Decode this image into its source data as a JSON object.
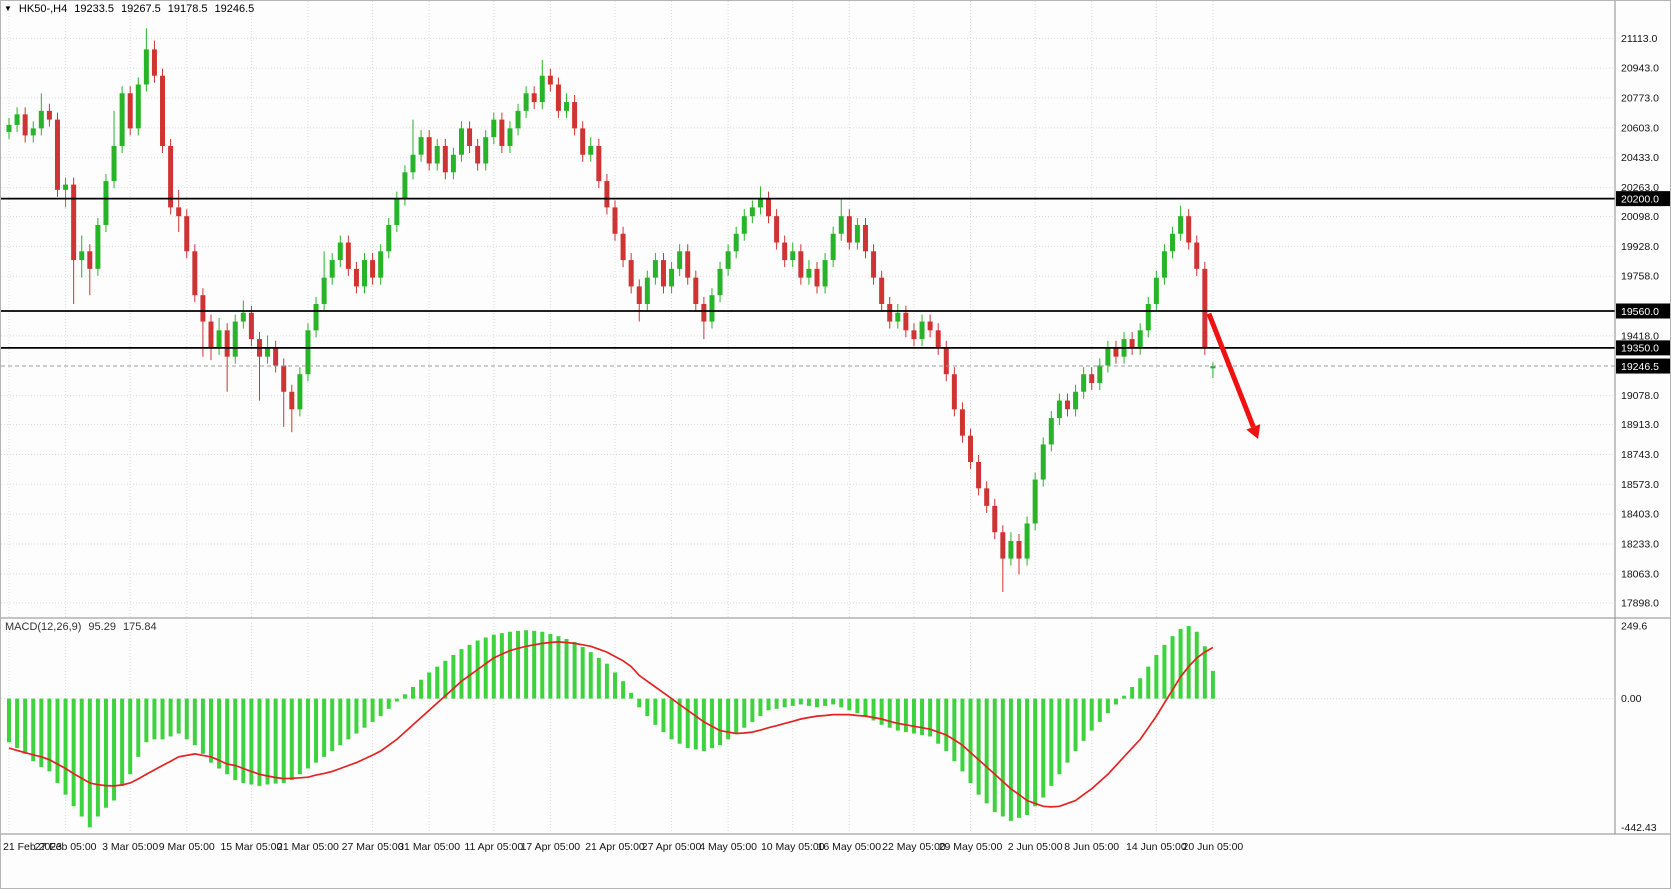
{
  "info_bar": {
    "symbol_period": "HK50-,H4",
    "open": "19233.5",
    "high": "19267.5",
    "low": "19178.5",
    "close": "19246.5"
  },
  "colors": {
    "up": "#28b428",
    "down": "#cf3434",
    "macd_hist": "#3fd23f",
    "macd_signal": "#e32222",
    "level": "#000000",
    "grid": "#dcdcdc",
    "bg": "#fdfdfd",
    "price_box_bg": "#000000",
    "price_box_text": "#ffffff",
    "arrow": "#f01212"
  },
  "price_axis": {
    "labels": [
      "21113.0",
      "20943.0",
      "20773.0",
      "20603.0",
      "20433.0",
      "20263.0",
      "20098.0",
      "19928.0",
      "19758.0",
      "19418.0",
      "19078.0",
      "18913.0",
      "18743.0",
      "18573.0",
      "18403.0",
      "18233.0",
      "18063.0",
      "17898.0"
    ],
    "levels": [
      {
        "price": 20200.0,
        "label": "20200.0"
      },
      {
        "price": 19560.0,
        "label": "19560.0"
      },
      {
        "price": 19350.0,
        "label": "19350.0"
      }
    ],
    "current": {
      "price": 19246.5,
      "label": "19246.5"
    }
  },
  "time_axis": {
    "labels": [
      "21 Feb 2023",
      "27 Feb 05:00",
      "3 Mar 05:00",
      "9 Mar 05:00",
      "15 Mar 05:00",
      "21 Mar 05:00",
      "27 Mar 05:00",
      "31 Mar 05:00",
      "11 Apr 05:00",
      "17 Apr 05:00",
      "21 Apr 05:00",
      "27 Apr 05:00",
      "4 May 05:00",
      "10 May 05:00",
      "16 May 05:00",
      "22 May 05:00",
      "29 May 05:00",
      "2 Jun 05:00",
      "8 Jun 05:00",
      "14 Jun 05:00",
      "20 Jun 05:00"
    ]
  },
  "macd": {
    "label": "MACD(12,26,9)",
    "value_main": "95.29",
    "value_signal": "175.84",
    "scale_labels": [
      {
        "value": 249.6,
        "label": "249.6"
      },
      {
        "value": 0,
        "label": "0.00"
      },
      {
        "value": -442.43,
        "label": "-442.43"
      }
    ]
  },
  "chart_data": {
    "type": "candlestick",
    "title": "HK50-,H4",
    "indicator": "MACD(12,26,9)",
    "price_range": [
      17840,
      21280
    ],
    "macd_range": [
      -455,
      260
    ],
    "support_resistance_levels": [
      20200.0,
      19560.0,
      19350.0
    ],
    "current_price": 19246.5,
    "last_bar_ohlc": {
      "open": 19233.5,
      "high": 19267.5,
      "low": 19178.5,
      "close": 19246.5
    },
    "annotation_arrow": {
      "from_index": 148.5,
      "from_price": 19545,
      "to_index": 154,
      "to_price": 18900,
      "note": "red down arrow"
    },
    "candles": [
      [
        20580,
        20660,
        20540,
        20620
      ],
      [
        20620,
        20720,
        20580,
        20680
      ],
      [
        20680,
        20720,
        20520,
        20560
      ],
      [
        20560,
        20640,
        20520,
        20600
      ],
      [
        20600,
        20800,
        20560,
        20700
      ],
      [
        20700,
        20740,
        20610,
        20650
      ],
      [
        20650,
        20690,
        20210,
        20250
      ],
      [
        20250,
        20320,
        20150,
        20280
      ],
      [
        20280,
        20320,
        19600,
        19850
      ],
      [
        19850,
        19990,
        19750,
        19900
      ],
      [
        19900,
        19940,
        19650,
        19800
      ],
      [
        19800,
        20090,
        19760,
        20050
      ],
      [
        20050,
        20340,
        20010,
        20300
      ],
      [
        20300,
        20700,
        20260,
        20500
      ],
      [
        20500,
        20840,
        20460,
        20800
      ],
      [
        20800,
        20840,
        20560,
        20600
      ],
      [
        20600,
        20890,
        20560,
        20850
      ],
      [
        20850,
        21170,
        20810,
        21050
      ],
      [
        21050,
        21100,
        20860,
        20900
      ],
      [
        20900,
        20940,
        20460,
        20500
      ],
      [
        20500,
        20540,
        20110,
        20150
      ],
      [
        20150,
        20250,
        20010,
        20100
      ],
      [
        20100,
        20140,
        19860,
        19900
      ],
      [
        19900,
        19940,
        19610,
        19650
      ],
      [
        19650,
        19690,
        19300,
        19500
      ],
      [
        19500,
        19540,
        19280,
        19350
      ],
      [
        19350,
        19520,
        19310,
        19450
      ],
      [
        19450,
        19490,
        19100,
        19300
      ],
      [
        19300,
        19540,
        19260,
        19500
      ],
      [
        19500,
        19620,
        19460,
        19550
      ],
      [
        19550,
        19590,
        19360,
        19400
      ],
      [
        19400,
        19440,
        19050,
        19300
      ],
      [
        19300,
        19420,
        19260,
        19350
      ],
      [
        19350,
        19390,
        19210,
        19250
      ],
      [
        19250,
        19290,
        18900,
        19100
      ],
      [
        19100,
        19140,
        18870,
        19000
      ],
      [
        19000,
        19240,
        18960,
        19200
      ],
      [
        19200,
        19490,
        19160,
        19450
      ],
      [
        19450,
        19640,
        19410,
        19600
      ],
      [
        19600,
        19900,
        19560,
        19750
      ],
      [
        19750,
        19890,
        19710,
        19850
      ],
      [
        19850,
        19990,
        19810,
        19950
      ],
      [
        19950,
        19990,
        19760,
        19800
      ],
      [
        19800,
        19840,
        19660,
        19700
      ],
      [
        19700,
        19890,
        19660,
        19850
      ],
      [
        19850,
        19890,
        19710,
        19750
      ],
      [
        19750,
        19940,
        19710,
        19900
      ],
      [
        19900,
        20090,
        19860,
        20050
      ],
      [
        20050,
        20240,
        20010,
        20200
      ],
      [
        20200,
        20390,
        20160,
        20350
      ],
      [
        20350,
        20650,
        20310,
        20450
      ],
      [
        20450,
        20590,
        20410,
        20550
      ],
      [
        20550,
        20590,
        20360,
        20400
      ],
      [
        20400,
        20540,
        20360,
        20500
      ],
      [
        20500,
        20540,
        20310,
        20350
      ],
      [
        20350,
        20490,
        20310,
        20450
      ],
      [
        20450,
        20640,
        20410,
        20600
      ],
      [
        20600,
        20640,
        20460,
        20500
      ],
      [
        20500,
        20540,
        20360,
        20400
      ],
      [
        20400,
        20590,
        20360,
        20550
      ],
      [
        20550,
        20690,
        20510,
        20650
      ],
      [
        20650,
        20690,
        20460,
        20500
      ],
      [
        20500,
        20640,
        20460,
        20600
      ],
      [
        20600,
        20740,
        20560,
        20700
      ],
      [
        20700,
        20840,
        20660,
        20800
      ],
      [
        20800,
        20840,
        20710,
        20750
      ],
      [
        20750,
        20990,
        20710,
        20900
      ],
      [
        20900,
        20940,
        20810,
        20850
      ],
      [
        20850,
        20890,
        20660,
        20700
      ],
      [
        20700,
        20800,
        20660,
        20750
      ],
      [
        20750,
        20790,
        20560,
        20600
      ],
      [
        20600,
        20640,
        20410,
        20450
      ],
      [
        20450,
        20550,
        20410,
        20500
      ],
      [
        20500,
        20540,
        20260,
        20300
      ],
      [
        20300,
        20340,
        20110,
        20150
      ],
      [
        20150,
        20190,
        19960,
        20000
      ],
      [
        20000,
        20040,
        19810,
        19850
      ],
      [
        19850,
        19890,
        19660,
        19700
      ],
      [
        19700,
        19740,
        19500,
        19600
      ],
      [
        19600,
        19790,
        19560,
        19750
      ],
      [
        19750,
        19890,
        19710,
        19850
      ],
      [
        19850,
        19890,
        19660,
        19700
      ],
      [
        19700,
        19840,
        19660,
        19800
      ],
      [
        19800,
        19940,
        19760,
        19900
      ],
      [
        19900,
        19940,
        19710,
        19750
      ],
      [
        19750,
        19790,
        19560,
        19600
      ],
      [
        19600,
        19640,
        19400,
        19500
      ],
      [
        19500,
        19690,
        19460,
        19650
      ],
      [
        19650,
        19840,
        19610,
        19800
      ],
      [
        19800,
        19940,
        19760,
        19900
      ],
      [
        19900,
        20040,
        19860,
        20000
      ],
      [
        20000,
        20140,
        19960,
        20100
      ],
      [
        20100,
        20190,
        20060,
        20150
      ],
      [
        20150,
        20270,
        20110,
        20200
      ],
      [
        20200,
        20240,
        20060,
        20100
      ],
      [
        20100,
        20140,
        19910,
        19950
      ],
      [
        19950,
        19990,
        19810,
        19850
      ],
      [
        19850,
        19950,
        19810,
        19900
      ],
      [
        19900,
        19940,
        19710,
        19750
      ],
      [
        19750,
        19850,
        19710,
        19800
      ],
      [
        19800,
        19840,
        19660,
        19700
      ],
      [
        19700,
        19890,
        19660,
        19850
      ],
      [
        19850,
        20040,
        19810,
        20000
      ],
      [
        20000,
        20200,
        19960,
        20100
      ],
      [
        20100,
        20140,
        19910,
        19950
      ],
      [
        19950,
        20090,
        19910,
        20050
      ],
      [
        20050,
        20090,
        19860,
        19900
      ],
      [
        19900,
        19940,
        19710,
        19750
      ],
      [
        19750,
        19790,
        19560,
        19600
      ],
      [
        19600,
        19640,
        19460,
        19500
      ],
      [
        19500,
        19600,
        19460,
        19550
      ],
      [
        19550,
        19590,
        19410,
        19450
      ],
      [
        19450,
        19490,
        19360,
        19400
      ],
      [
        19400,
        19540,
        19360,
        19500
      ],
      [
        19500,
        19540,
        19410,
        19450
      ],
      [
        19450,
        19490,
        19310,
        19350
      ],
      [
        19350,
        19390,
        19160,
        19200
      ],
      [
        19200,
        19240,
        18960,
        19000
      ],
      [
        19000,
        19040,
        18810,
        18850
      ],
      [
        18850,
        18890,
        18660,
        18700
      ],
      [
        18700,
        18740,
        18510,
        18550
      ],
      [
        18550,
        18590,
        18410,
        18450
      ],
      [
        18450,
        18490,
        18260,
        18300
      ],
      [
        18300,
        18340,
        17960,
        18150
      ],
      [
        18150,
        18300,
        18110,
        18250
      ],
      [
        18250,
        18290,
        18060,
        18150
      ],
      [
        18150,
        18390,
        18110,
        18350
      ],
      [
        18350,
        18640,
        18310,
        18600
      ],
      [
        18600,
        18840,
        18560,
        18800
      ],
      [
        18800,
        18990,
        18760,
        18950
      ],
      [
        18950,
        19090,
        18910,
        19050
      ],
      [
        19050,
        19090,
        18960,
        19000
      ],
      [
        19000,
        19140,
        18960,
        19100
      ],
      [
        19100,
        19240,
        19060,
        19200
      ],
      [
        19200,
        19240,
        19110,
        19150
      ],
      [
        19150,
        19290,
        19110,
        19250
      ],
      [
        19250,
        19390,
        19210,
        19350
      ],
      [
        19350,
        19390,
        19260,
        19300
      ],
      [
        19300,
        19440,
        19260,
        19400
      ],
      [
        19400,
        19440,
        19310,
        19350
      ],
      [
        19350,
        19490,
        19310,
        19450
      ],
      [
        19450,
        19640,
        19410,
        19600
      ],
      [
        19600,
        19790,
        19560,
        19750
      ],
      [
        19750,
        19940,
        19710,
        19900
      ],
      [
        19900,
        20040,
        19860,
        20000
      ],
      [
        20000,
        20160,
        19960,
        20100
      ],
      [
        20100,
        20140,
        19910,
        19950
      ],
      [
        19950,
        19990,
        19760,
        19800
      ],
      [
        19800,
        19840,
        19310,
        19350
      ],
      [
        19233.5,
        19267.5,
        19178.5,
        19246.5
      ]
    ],
    "macd_histogram": [
      -150,
      -170,
      -190,
      -215,
      -235,
      -250,
      -290,
      -330,
      -370,
      -405,
      -442.43,
      -405,
      -375,
      -350,
      -300,
      -260,
      -200,
      -150,
      -140,
      -140,
      -130,
      -120,
      -140,
      -160,
      -190,
      -220,
      -240,
      -260,
      -280,
      -290,
      -295,
      -300,
      -295,
      -292,
      -290,
      -280,
      -260,
      -240,
      -220,
      -200,
      -180,
      -160,
      -140,
      -120,
      -100,
      -80,
      -60,
      -35,
      -10,
      15,
      40,
      65,
      90,
      110,
      130,
      150,
      170,
      185,
      200,
      210,
      220,
      225,
      230,
      233,
      235,
      233,
      230,
      222,
      215,
      205,
      195,
      178,
      160,
      140,
      120,
      90,
      60,
      20,
      -30,
      -60,
      -90,
      -115,
      -140,
      -155,
      -170,
      -175,
      -180,
      -170,
      -160,
      -140,
      -120,
      -100,
      -80,
      -60,
      -40,
      -35,
      -30,
      -25,
      -20,
      -25,
      -30,
      -25,
      -20,
      -30,
      -40,
      -50,
      -60,
      -75,
      -90,
      -100,
      -110,
      -115,
      -120,
      -125,
      -130,
      -155,
      -180,
      -215,
      -250,
      -290,
      -330,
      -360,
      -390,
      -405,
      -420,
      -410,
      -400,
      -370,
      -340,
      -300,
      -260,
      -220,
      -180,
      -145,
      -110,
      -80,
      -50,
      -20,
      10,
      40,
      70,
      110,
      150,
      185,
      215,
      240,
      249.6,
      230,
      180,
      95.29
    ],
    "macd_signal": [
      -170,
      -178,
      -186,
      -193,
      -200,
      -210,
      -225,
      -240,
      -258,
      -274,
      -290,
      -296,
      -299,
      -300,
      -297,
      -290,
      -276,
      -260,
      -245,
      -230,
      -215,
      -200,
      -195,
      -190,
      -195,
      -200,
      -212,
      -225,
      -230,
      -240,
      -250,
      -260,
      -266,
      -271,
      -275,
      -274,
      -272,
      -270,
      -263,
      -257,
      -250,
      -240,
      -230,
      -220,
      -207,
      -194,
      -180,
      -160,
      -140,
      -115,
      -90,
      -65,
      -40,
      -15,
      10,
      35,
      60,
      80,
      100,
      120,
      140,
      153,
      165,
      173,
      180,
      185,
      190,
      193,
      195,
      193,
      190,
      185,
      180,
      170,
      160,
      145,
      130,
      110,
      80,
      60,
      40,
      20,
      0,
      -20,
      -40,
      -60,
      -80,
      -95,
      -110,
      -115,
      -120,
      -118,
      -115,
      -108,
      -100,
      -93,
      -85,
      -78,
      -70,
      -65,
      -60,
      -58,
      -55,
      -55,
      -55,
      -58,
      -60,
      -65,
      -70,
      -78,
      -85,
      -90,
      -95,
      -100,
      -105,
      -115,
      -125,
      -142,
      -160,
      -185,
      -210,
      -235,
      -260,
      -285,
      -310,
      -330,
      -350,
      -360,
      -370,
      -372,
      -370,
      -360,
      -350,
      -330,
      -310,
      -285,
      -260,
      -230,
      -200,
      -170,
      -140,
      -100,
      -60,
      -15,
      30,
      75,
      110,
      140,
      160,
      175.84
    ]
  }
}
